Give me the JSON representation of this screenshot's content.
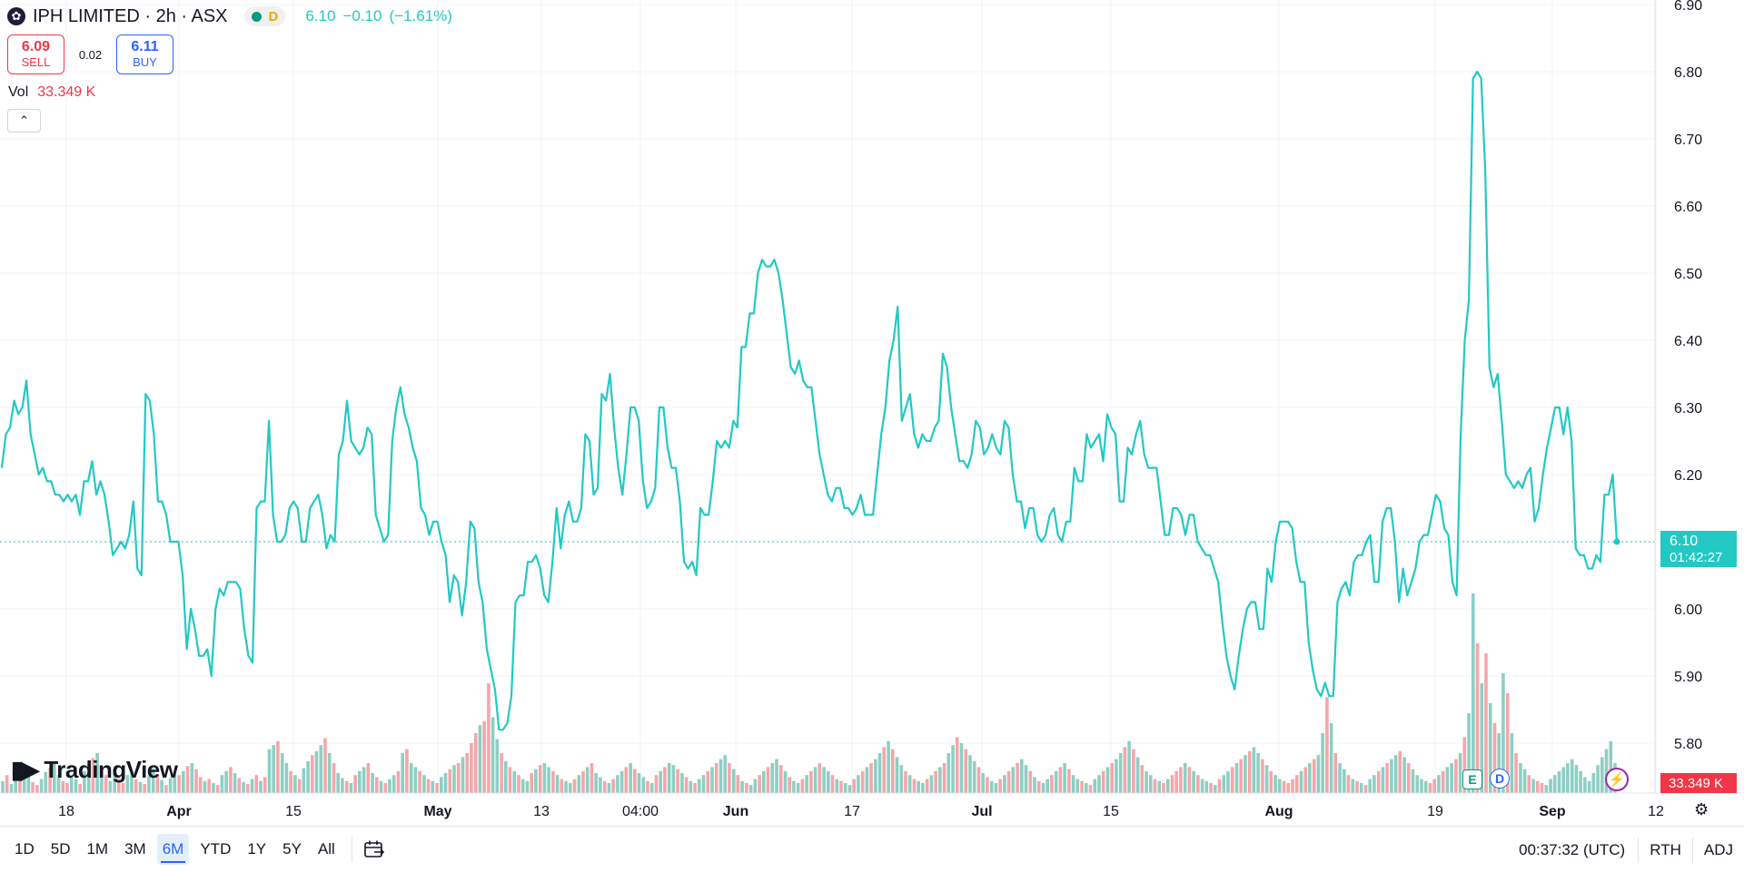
{
  "legend": {
    "symbol": "IPH LIMITED · 2h · ASX",
    "status_letter": "D",
    "last": "6.10",
    "change": "−0.10",
    "change_pct": "(−1.61%)"
  },
  "trade": {
    "sell_price": "6.09",
    "sell_label": "SELL",
    "spread": "0.02",
    "buy_price": "6.11",
    "buy_label": "BUY"
  },
  "volume": {
    "label": "Vol",
    "value": "33.349 K"
  },
  "brand": {
    "name": "TradingView"
  },
  "price_tag": {
    "price": "6.10",
    "countdown": "01:42:27"
  },
  "volume_tag": "33.349 K",
  "events": {
    "earnings": "E",
    "dividend": "D"
  },
  "colors": {
    "line": "#22c9c4",
    "up_volume": "#8dcfc4",
    "down_volume": "#f5a6aa",
    "grid": "#f0f3fa"
  },
  "toolbar": {
    "ranges": [
      "1D",
      "5D",
      "1M",
      "3M",
      "6M",
      "YTD",
      "1Y",
      "5Y",
      "All"
    ],
    "active_range": "6M",
    "clock": "00:37:32 (UTC)",
    "session": "RTH",
    "adjust": "ADJ"
  },
  "chart_data": {
    "type": "line",
    "y_axis": {
      "ticks": [
        5.8,
        5.9,
        6.0,
        6.1,
        6.2,
        6.3,
        6.4,
        6.5,
        6.6,
        6.7,
        6.8,
        6.9
      ],
      "labels": [
        "5.80",
        "5.90",
        "6.00",
        "6.10",
        "6.20",
        "6.30",
        "6.40",
        "6.50",
        "6.60",
        "6.70",
        "6.80",
        "6.90"
      ],
      "range": [
        5.72,
        6.9
      ]
    },
    "x_labels": [
      "18",
      "Apr",
      "15",
      "May",
      "13",
      "04:00",
      "Jun",
      "17",
      "Jul",
      "15",
      "Aug",
      "19",
      "Sep",
      "12"
    ],
    "last_price": 6.1,
    "series": [
      {
        "values": [
          6.21,
          6.26,
          6.27,
          6.31,
          6.29,
          6.3,
          6.34,
          6.26,
          6.23,
          6.2,
          6.21,
          6.19,
          6.19,
          6.17,
          6.17,
          6.16,
          6.17,
          6.16,
          6.17,
          6.14,
          6.19,
          6.19,
          6.22,
          6.17,
          6.19,
          6.17,
          6.13,
          6.08,
          6.09,
          6.1,
          6.09,
          6.11,
          6.16,
          6.06,
          6.05,
          6.32,
          6.31,
          6.26,
          6.16,
          6.16,
          6.14,
          6.1,
          6.1,
          6.1,
          6.05,
          5.94,
          6.0,
          5.97,
          5.93,
          5.93,
          5.94,
          5.9,
          6.0,
          6.03,
          6.02,
          6.04,
          6.04,
          6.04,
          6.03,
          5.97,
          5.93,
          5.92,
          6.15,
          6.16,
          6.16,
          6.28,
          6.14,
          6.1,
          6.1,
          6.11,
          6.15,
          6.16,
          6.15,
          6.1,
          6.1,
          6.15,
          6.16,
          6.17,
          6.14,
          6.09,
          6.11,
          6.1,
          6.23,
          6.25,
          6.31,
          6.25,
          6.24,
          6.23,
          6.24,
          6.27,
          6.26,
          6.14,
          6.12,
          6.1,
          6.11,
          6.25,
          6.3,
          6.33,
          6.29,
          6.27,
          6.24,
          6.22,
          6.15,
          6.14,
          6.11,
          6.13,
          6.13,
          6.1,
          6.08,
          6.01,
          6.05,
          6.04,
          5.99,
          6.04,
          6.13,
          6.12,
          6.04,
          6.01,
          5.94,
          5.91,
          5.88,
          5.82,
          5.82,
          5.83,
          5.87,
          6.01,
          6.02,
          6.02,
          6.07,
          6.07,
          6.08,
          6.06,
          6.02,
          6.01,
          6.07,
          6.15,
          6.09,
          6.14,
          6.16,
          6.13,
          6.13,
          6.15,
          6.26,
          6.25,
          6.17,
          6.18,
          6.32,
          6.31,
          6.35,
          6.27,
          6.21,
          6.17,
          6.23,
          6.3,
          6.3,
          6.28,
          6.19,
          6.15,
          6.16,
          6.18,
          6.3,
          6.3,
          6.24,
          6.21,
          6.21,
          6.16,
          6.07,
          6.06,
          6.07,
          6.05,
          6.15,
          6.14,
          6.14,
          6.19,
          6.25,
          6.24,
          6.25,
          6.24,
          6.28,
          6.27,
          6.39,
          6.39,
          6.44,
          6.44,
          6.5,
          6.52,
          6.51,
          6.51,
          6.52,
          6.5,
          6.46,
          6.41,
          6.36,
          6.35,
          6.37,
          6.34,
          6.33,
          6.33,
          6.28,
          6.23,
          6.2,
          6.17,
          6.16,
          6.18,
          6.18,
          6.15,
          6.15,
          6.14,
          6.15,
          6.17,
          6.14,
          6.14,
          6.14,
          6.2,
          6.26,
          6.3,
          6.37,
          6.4,
          6.45,
          6.28,
          6.3,
          6.32,
          6.26,
          6.24,
          6.26,
          6.25,
          6.25,
          6.27,
          6.28,
          6.38,
          6.36,
          6.3,
          6.26,
          6.22,
          6.22,
          6.21,
          6.23,
          6.28,
          6.27,
          6.23,
          6.24,
          6.26,
          6.24,
          6.23,
          6.28,
          6.27,
          6.2,
          6.16,
          6.16,
          6.12,
          6.15,
          6.15,
          6.11,
          6.1,
          6.11,
          6.14,
          6.15,
          6.11,
          6.1,
          6.13,
          6.13,
          6.21,
          6.19,
          6.19,
          6.26,
          6.24,
          6.25,
          6.26,
          6.22,
          6.29,
          6.27,
          6.26,
          6.16,
          6.16,
          6.24,
          6.23,
          6.26,
          6.28,
          6.23,
          6.21,
          6.21,
          6.21,
          6.16,
          6.11,
          6.11,
          6.15,
          6.15,
          6.14,
          6.11,
          6.14,
          6.14,
          6.1,
          6.09,
          6.08,
          6.08,
          6.06,
          6.04,
          5.98,
          5.93,
          5.9,
          5.88,
          5.93,
          5.97,
          6.0,
          6.01,
          6.01,
          5.97,
          5.97,
          6.06,
          6.04,
          6.1,
          6.13,
          6.13,
          6.13,
          6.12,
          6.07,
          6.04,
          6.04,
          5.95,
          5.91,
          5.88,
          5.87,
          5.89,
          5.87,
          5.87,
          6.01,
          6.03,
          6.04,
          6.02,
          6.07,
          6.08,
          6.08,
          6.1,
          6.11,
          6.04,
          6.04,
          6.13,
          6.15,
          6.15,
          6.1,
          6.01,
          6.06,
          6.02,
          6.04,
          6.06,
          6.1,
          6.11,
          6.11,
          6.14,
          6.17,
          6.16,
          6.12,
          6.11,
          6.04,
          6.02,
          6.26,
          6.4,
          6.46,
          6.79,
          6.8,
          6.79,
          6.65,
          6.36,
          6.33,
          6.35,
          6.28,
          6.2,
          6.19,
          6.18,
          6.19,
          6.18,
          6.2,
          6.21,
          6.13,
          6.15,
          6.2,
          6.24,
          6.27,
          6.3,
          6.3,
          6.26,
          6.3,
          6.25,
          6.09,
          6.08,
          6.08,
          6.06,
          6.06,
          6.08,
          6.07,
          6.17,
          6.17,
          6.2,
          6.1
        ]
      }
    ],
    "volume_values": [
      12,
      18,
      9,
      14,
      22,
      16,
      19,
      11,
      8,
      14,
      21,
      25,
      30,
      18,
      12,
      10,
      16,
      14,
      9,
      22,
      28,
      35,
      40,
      26,
      18,
      12,
      20,
      15,
      10,
      18,
      22,
      14,
      11,
      9,
      17,
      25,
      19,
      13,
      8,
      15,
      20,
      18,
      22,
      27,
      30,
      24,
      16,
      12,
      14,
      10,
      8,
      18,
      22,
      26,
      20,
      15,
      11,
      9,
      14,
      18,
      12,
      16,
      44,
      48,
      52,
      40,
      30,
      22,
      18,
      14,
      25,
      32,
      38,
      42,
      48,
      55,
      40,
      30,
      20,
      15,
      12,
      10,
      18,
      22,
      26,
      30,
      20,
      16,
      12,
      10,
      14,
      18,
      22,
      40,
      44,
      30,
      26,
      22,
      18,
      14,
      12,
      10,
      16,
      20,
      24,
      28,
      30,
      36,
      40,
      50,
      60,
      68,
      72,
      110,
      76,
      54,
      40,
      32,
      26,
      22,
      18,
      14,
      12,
      20,
      24,
      28,
      30,
      26,
      22,
      18,
      14,
      12,
      10,
      14,
      18,
      22,
      26,
      30,
      20,
      16,
      12,
      10,
      14,
      18,
      22,
      26,
      30,
      24,
      20,
      16,
      12,
      10,
      18,
      22,
      26,
      30,
      28,
      24,
      20,
      16,
      12,
      10,
      14,
      18,
      22,
      26,
      30,
      34,
      38,
      30,
      24,
      18,
      12,
      10,
      8,
      14,
      18,
      22,
      26,
      30,
      34,
      28,
      22,
      16,
      12,
      10,
      14,
      18,
      22,
      26,
      30,
      26,
      22,
      18,
      14,
      12,
      10,
      8,
      14,
      18,
      22,
      26,
      30,
      34,
      40,
      46,
      52,
      44,
      36,
      28,
      22,
      18,
      14,
      12,
      10,
      14,
      18,
      22,
      26,
      30,
      40,
      48,
      56,
      50,
      44,
      38,
      32,
      26,
      20,
      16,
      12,
      10,
      14,
      18,
      22,
      26,
      30,
      34,
      28,
      22,
      16,
      12,
      10,
      14,
      18,
      22,
      26,
      30,
      24,
      18,
      14,
      12,
      10,
      8,
      14,
      18,
      22,
      26,
      30,
      34,
      40,
      46,
      52,
      44,
      36,
      28,
      22,
      18,
      14,
      12,
      10,
      14,
      18,
      22,
      26,
      30,
      26,
      22,
      18,
      14,
      12,
      10,
      8,
      14,
      18,
      22,
      26,
      30,
      34,
      38,
      42,
      46,
      40,
      34,
      28,
      22,
      18,
      14,
      12,
      10,
      14,
      18,
      22,
      26,
      30,
      34,
      38,
      60,
      96,
      70,
      40,
      30,
      24,
      18,
      14,
      12,
      10,
      8,
      14,
      18,
      22,
      26,
      30,
      34,
      38,
      42,
      36,
      30,
      24,
      18,
      14,
      12,
      10,
      14,
      18,
      22,
      26,
      30,
      34,
      40,
      56,
      80,
      200,
      150,
      110,
      140,
      90,
      70,
      60,
      120,
      100,
      60,
      40,
      30,
      24,
      18,
      14,
      12,
      10,
      8,
      14,
      18,
      22,
      26,
      30,
      34,
      28,
      22,
      16,
      12,
      20,
      28,
      36,
      44,
      52,
      30
    ],
    "volume_down_flags": [
      0,
      1,
      0,
      0,
      1,
      0,
      0,
      1,
      1,
      0,
      0,
      1,
      0,
      0,
      1,
      1,
      0,
      0,
      1,
      0,
      0,
      1,
      0,
      0,
      1,
      0,
      0,
      1,
      1,
      0,
      0,
      1,
      0,
      1,
      0,
      0,
      1,
      0,
      1,
      0,
      0,
      1,
      0,
      1,
      0,
      1,
      1,
      0,
      1,
      0,
      1,
      0,
      0,
      1,
      0,
      1,
      0,
      1,
      0,
      1,
      0,
      1,
      0,
      0,
      1,
      0,
      0,
      1,
      0,
      1,
      0,
      0,
      1,
      0,
      0,
      1,
      0,
      1,
      0,
      0,
      1,
      0,
      1,
      0,
      0,
      1,
      0,
      1,
      0,
      1,
      0,
      0,
      1,
      0,
      1,
      0,
      0,
      1,
      0,
      1,
      0,
      1,
      0,
      0,
      1,
      0,
      1,
      0,
      1,
      1,
      1,
      0,
      1,
      1,
      0,
      0,
      1,
      0,
      1,
      0,
      1,
      0,
      0,
      1,
      0,
      1,
      0,
      0,
      1,
      0,
      1,
      0,
      0,
      1,
      0,
      1,
      0,
      1,
      0,
      0,
      1,
      0,
      1,
      0,
      0,
      1,
      0,
      1,
      0,
      0,
      1,
      0,
      1,
      0,
      1,
      0,
      0,
      1,
      0,
      1,
      0,
      1,
      0,
      0,
      1,
      0,
      1,
      0,
      0,
      1,
      0,
      1,
      0,
      1,
      0,
      0,
      1,
      0,
      1,
      0,
      0,
      1,
      0,
      1,
      0,
      0,
      1,
      0,
      1,
      0,
      1,
      0,
      0,
      1,
      0,
      1,
      0,
      0,
      1,
      0,
      1,
      0,
      1,
      0,
      0,
      1,
      0,
      1,
      0,
      0,
      1,
      0,
      1,
      0,
      0,
      1,
      0,
      1,
      0,
      1,
      0,
      0,
      1,
      0,
      1,
      0,
      0,
      1,
      0,
      1,
      0,
      0,
      1,
      0,
      1,
      0,
      1,
      0,
      0,
      1,
      0,
      1,
      0,
      0,
      1,
      0,
      1,
      0,
      1,
      0,
      0,
      1,
      0,
      1,
      0,
      0,
      1,
      0,
      1,
      0,
      0,
      1,
      0,
      1,
      0,
      1,
      0,
      0,
      1,
      0,
      1,
      0,
      1,
      1,
      1,
      0,
      1,
      0,
      1,
      0,
      0,
      1,
      0,
      1,
      0,
      0,
      1,
      0,
      1,
      0,
      1,
      0,
      0,
      1,
      0,
      1,
      0,
      0,
      1,
      1,
      1,
      1,
      0,
      1,
      0,
      1,
      0,
      0,
      1,
      0,
      1,
      0,
      0,
      1,
      0,
      1,
      0,
      1,
      0,
      0,
      1,
      0,
      1,
      0,
      0,
      1,
      0,
      1,
      0,
      0,
      0,
      0,
      1,
      1,
      0,
      1,
      0,
      0,
      1,
      0,
      1,
      0,
      0,
      1,
      0,
      1,
      0,
      1,
      0,
      0,
      1,
      0,
      1,
      0,
      0,
      1,
      0,
      1,
      1,
      0
    ]
  }
}
